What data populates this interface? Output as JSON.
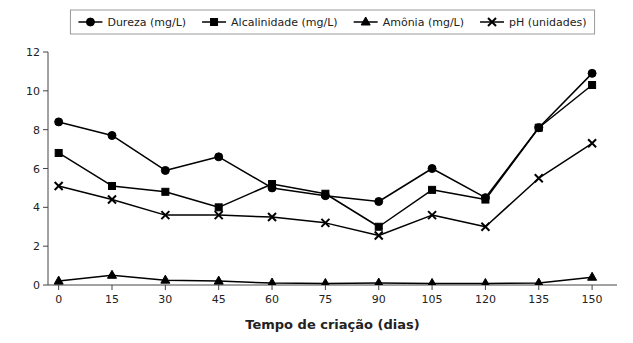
{
  "chart_data": {
    "type": "line",
    "x": [
      0,
      15,
      30,
      45,
      60,
      75,
      90,
      105,
      120,
      135,
      150
    ],
    "xlabel": "Tempo de criação (dias)",
    "xlim": [
      -3,
      157
    ],
    "xticks": [
      0,
      15,
      30,
      45,
      60,
      75,
      90,
      105,
      120,
      135,
      150
    ],
    "ylim": [
      0,
      12
    ],
    "yticks": [
      0,
      2,
      4,
      6,
      8,
      10,
      12
    ],
    "grid": false,
    "legend": "top",
    "series": [
      {
        "name": "Dureza (mg/L)",
        "color": "#000000",
        "marker": "circle",
        "values": [
          8.4,
          7.7,
          5.9,
          6.6,
          5.0,
          4.6,
          4.3,
          6.0,
          4.5,
          8.1,
          10.9
        ]
      },
      {
        "name": "Alcalinidade (mg/L)",
        "color": "#000000",
        "marker": "square",
        "values": [
          6.8,
          5.1,
          4.8,
          4.0,
          5.2,
          4.7,
          3.0,
          4.9,
          4.4,
          8.1,
          10.3
        ]
      },
      {
        "name": "Amônia (mg/L)",
        "color": "#000000",
        "marker": "triangle",
        "values": [
          0.2,
          0.5,
          0.25,
          0.2,
          0.1,
          0.08,
          0.1,
          0.08,
          0.08,
          0.1,
          0.4
        ]
      },
      {
        "name": "pH (unidades)",
        "color": "#000000",
        "marker": "x",
        "values": [
          5.1,
          4.4,
          3.6,
          3.6,
          3.5,
          3.2,
          2.55,
          3.6,
          3.0,
          5.5,
          7.3
        ]
      }
    ]
  }
}
